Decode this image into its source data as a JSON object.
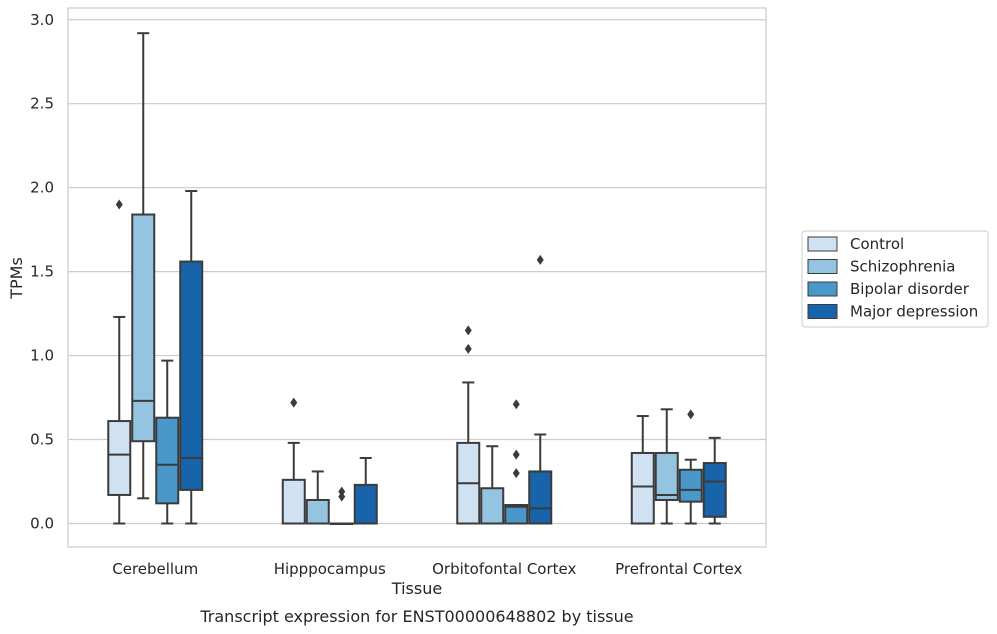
{
  "caption": "Transcript expression for ENST00000648802 by tissue",
  "chart_data": {
    "type": "box",
    "xlabel": "Tissue",
    "ylabel": "TPMs",
    "ylim": [
      -0.14,
      3.07
    ],
    "yticks": [
      "0.0",
      "0.5",
      "1.0",
      "1.5",
      "2.0",
      "2.5",
      "3.0"
    ],
    "grid": "horizontal",
    "legend_position": "right",
    "categories": [
      "Cerebellum",
      "Hipppocampus",
      "Orbitofontal Cortex",
      "Prefrontal Cortex"
    ],
    "series": [
      {
        "name": "Control",
        "color": "#d0e1f2",
        "boxes": [
          {
            "whisker_low": 0.0,
            "q1": 0.17,
            "median": 0.41,
            "q3": 0.61,
            "whisker_high": 1.23,
            "outliers": [
              1.9
            ]
          },
          {
            "whisker_low": 0.0,
            "q1": 0.0,
            "median": 0.0,
            "q3": 0.26,
            "whisker_high": 0.48,
            "outliers": [
              0.72
            ]
          },
          {
            "whisker_low": 0.0,
            "q1": 0.0,
            "median": 0.24,
            "q3": 0.48,
            "whisker_high": 0.84,
            "outliers": [
              1.04,
              1.15
            ]
          },
          {
            "whisker_low": 0.0,
            "q1": 0.0,
            "median": 0.22,
            "q3": 0.42,
            "whisker_high": 0.64,
            "outliers": []
          }
        ]
      },
      {
        "name": "Schizophrenia",
        "color": "#94c4df",
        "boxes": [
          {
            "whisker_low": 0.15,
            "q1": 0.49,
            "median": 0.73,
            "q3": 1.84,
            "whisker_high": 2.92,
            "outliers": []
          },
          {
            "whisker_low": 0.0,
            "q1": 0.0,
            "median": 0.0,
            "q3": 0.14,
            "whisker_high": 0.31,
            "outliers": []
          },
          {
            "whisker_low": 0.0,
            "q1": 0.0,
            "median": 0.0,
            "q3": 0.21,
            "whisker_high": 0.46,
            "outliers": []
          },
          {
            "whisker_low": 0.0,
            "q1": 0.14,
            "median": 0.17,
            "q3": 0.42,
            "whisker_high": 0.68,
            "outliers": []
          }
        ]
      },
      {
        "name": "Bipolar disorder",
        "color": "#4a98c9",
        "boxes": [
          {
            "whisker_low": 0.0,
            "q1": 0.12,
            "median": 0.35,
            "q3": 0.63,
            "whisker_high": 0.97,
            "outliers": []
          },
          {
            "whisker_low": 0.0,
            "q1": 0.0,
            "median": 0.0,
            "q3": 0.0,
            "whisker_high": 0.0,
            "outliers": [
              0.16,
              0.19
            ]
          },
          {
            "whisker_low": 0.0,
            "q1": 0.0,
            "median": 0.1,
            "q3": 0.11,
            "whisker_high": 0.11,
            "outliers": [
              0.3,
              0.41,
              0.71
            ]
          },
          {
            "whisker_low": 0.0,
            "q1": 0.13,
            "median": 0.2,
            "q3": 0.32,
            "whisker_high": 0.38,
            "outliers": [
              0.65
            ]
          }
        ]
      },
      {
        "name": "Major depression",
        "color": "#1764ab",
        "boxes": [
          {
            "whisker_low": 0.0,
            "q1": 0.2,
            "median": 0.39,
            "q3": 1.56,
            "whisker_high": 1.98,
            "outliers": []
          },
          {
            "whisker_low": 0.0,
            "q1": 0.0,
            "median": 0.0,
            "q3": 0.23,
            "whisker_high": 0.39,
            "outliers": []
          },
          {
            "whisker_low": 0.0,
            "q1": 0.0,
            "median": 0.09,
            "q3": 0.31,
            "whisker_high": 0.53,
            "outliers": [
              1.57
            ]
          },
          {
            "whisker_low": 0.0,
            "q1": 0.04,
            "median": 0.25,
            "q3": 0.36,
            "whisker_high": 0.51,
            "outliers": []
          }
        ]
      }
    ]
  }
}
